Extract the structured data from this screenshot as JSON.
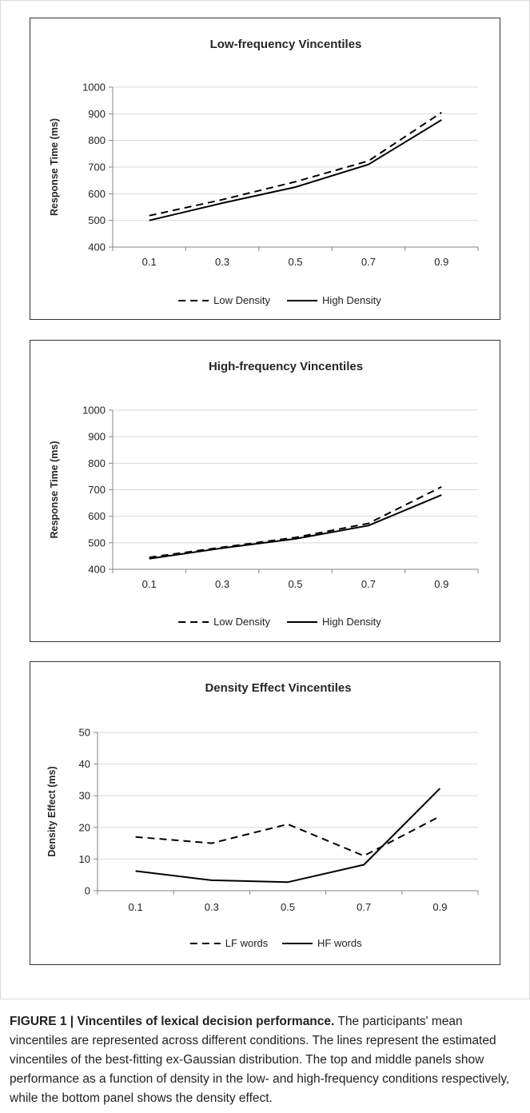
{
  "chart_data": [
    {
      "type": "line",
      "title": "Low-frequency Vincentiles",
      "xlabel": "",
      "ylabel": "Response Time (ms)",
      "categories": [
        "0.1",
        "0.3",
        "0.5",
        "0.7",
        "0.9"
      ],
      "yticks": [
        "400",
        "500",
        "600",
        "700",
        "800",
        "900",
        "1000"
      ],
      "ylim": [
        400,
        1000
      ],
      "series": [
        {
          "name": "Low Density",
          "style": "dashed",
          "values": [
            518,
            578,
            645,
            723,
            905
          ]
        },
        {
          "name": "High Density",
          "style": "solid",
          "values": [
            500,
            565,
            625,
            710,
            877
          ]
        }
      ],
      "legend": "bottom",
      "grid": true
    },
    {
      "type": "line",
      "title": "High-frequency Vincentiles",
      "xlabel": "",
      "ylabel": "Response Time (ms)",
      "categories": [
        "0.1",
        "0.3",
        "0.5",
        "0.7",
        "0.9"
      ],
      "yticks": [
        "400",
        "500",
        "600",
        "700",
        "800",
        "900",
        "1000"
      ],
      "ylim": [
        400,
        1000
      ],
      "series": [
        {
          "name": "Low Density",
          "style": "dashed",
          "values": [
            445,
            483,
            520,
            573,
            711
          ]
        },
        {
          "name": "High Density",
          "style": "solid",
          "values": [
            440,
            480,
            515,
            565,
            680
          ]
        }
      ],
      "legend": "bottom",
      "grid": true
    },
    {
      "type": "line",
      "title": "Density Effect Vincentiles",
      "xlabel": "",
      "ylabel": "Density Effect (ms)",
      "categories": [
        "0.1",
        "0.3",
        "0.5",
        "0.7",
        "0.9"
      ],
      "yticks": [
        "0",
        "10",
        "20",
        "30",
        "40",
        "50"
      ],
      "ylim": [
        0,
        50
      ],
      "series": [
        {
          "name": "LF words",
          "style": "dashed",
          "values": [
            17,
            15,
            21,
            11,
            23.5
          ]
        },
        {
          "name": "HF words",
          "style": "solid",
          "values": [
            6.2,
            3.3,
            2.7,
            8.2,
            32.3
          ]
        }
      ],
      "legend": "bottom",
      "grid": true
    }
  ],
  "caption": {
    "label": "FIGURE 1 | ",
    "title": "Vincentiles of lexical decision performance.",
    "body": " The participants' mean vincentiles are represented across different conditions. The lines represent the estimated vincentiles of the best-fitting ex-Gaussian distribution. The top and middle panels show performance as a function of density in the low- and high-frequency conditions respectively, while the bottom panel shows the density effect."
  }
}
